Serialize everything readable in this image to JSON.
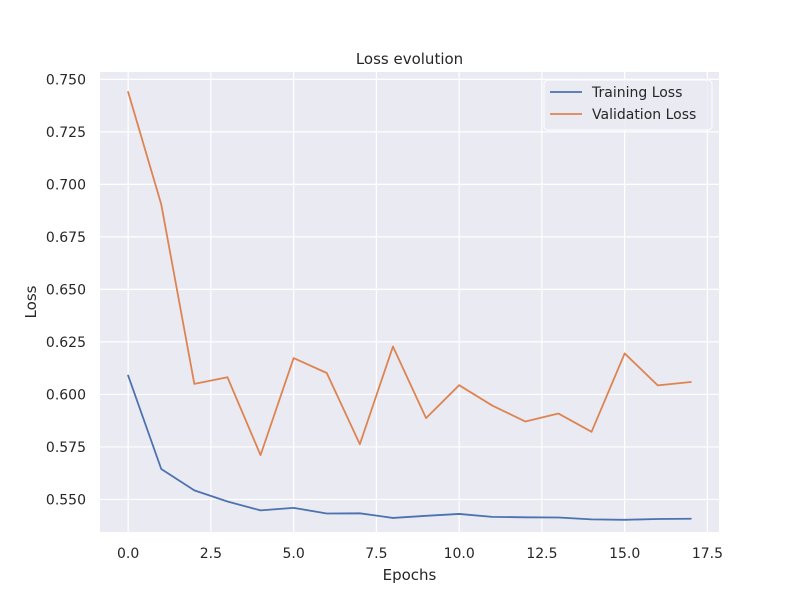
{
  "chart_data": {
    "type": "line",
    "title": "Loss evolution",
    "xlabel": "Epochs",
    "ylabel": "Loss",
    "xlim": [
      -0.85,
      17.85
    ],
    "ylim": [
      0.5345,
      0.7535
    ],
    "grid": true,
    "legend_position": "top-right",
    "x_ticks": [
      0.0,
      2.5,
      5.0,
      7.5,
      10.0,
      12.5,
      15.0,
      17.5
    ],
    "x_tick_labels": [
      "0.0",
      "2.5",
      "5.0",
      "7.5",
      "10.0",
      "12.5",
      "15.0",
      "17.5"
    ],
    "y_ticks": [
      0.55,
      0.575,
      0.6,
      0.625,
      0.65,
      0.675,
      0.7,
      0.725,
      0.75
    ],
    "y_tick_labels": [
      "0.550",
      "0.575",
      "0.600",
      "0.625",
      "0.650",
      "0.675",
      "0.700",
      "0.725",
      "0.750"
    ],
    "x": [
      0,
      1,
      2,
      3,
      4,
      5,
      6,
      7,
      8,
      9,
      10,
      11,
      12,
      13,
      14,
      15,
      16,
      17
    ],
    "series": [
      {
        "name": "Training Loss",
        "color": "#4c72b0",
        "values": [
          0.609,
          0.5645,
          0.5543,
          0.549,
          0.5448,
          0.546,
          0.5433,
          0.5434,
          0.5412,
          0.5422,
          0.5431,
          0.5417,
          0.5415,
          0.5414,
          0.5405,
          0.5403,
          0.5407,
          0.5408
        ]
      },
      {
        "name": "Validation Loss",
        "color": "#dd8452",
        "values": [
          0.744,
          0.6905,
          0.605,
          0.6082,
          0.5711,
          0.6173,
          0.6102,
          0.5763,
          0.6228,
          0.5887,
          0.6044,
          0.5947,
          0.5871,
          0.5909,
          0.5822,
          0.6195,
          0.6043,
          0.6059
        ]
      }
    ]
  }
}
